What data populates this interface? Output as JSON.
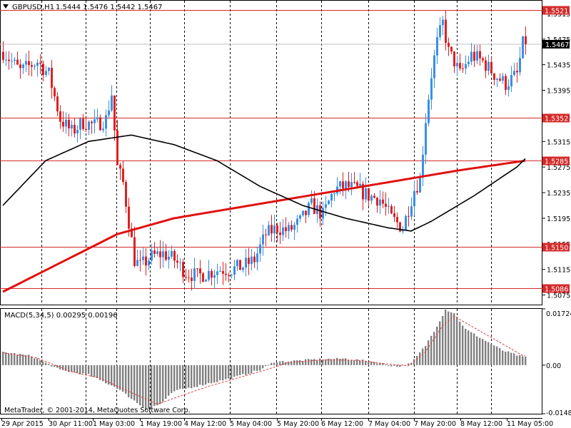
{
  "header": {
    "dropdown_icon": "triangle-down-icon",
    "symbol": "GBPUSD,H1",
    "ohlc": "1.5444 1.5476 1.5442 1.5467"
  },
  "colors": {
    "bull": "#3a8ee6",
    "bear": "#e02020",
    "level_line": "#d42a2a",
    "ma_fast": "#000000",
    "ma_slow": "#e01010",
    "macd_hist": "#808080",
    "macd_signal": "#e04040",
    "grid": "#000000",
    "background": "#ffffff"
  },
  "main_chart": {
    "y_min": 1.506,
    "y_max": 1.5535,
    "y_ticks": [
      "1.5515",
      "1.5475",
      "1.5435",
      "1.5395",
      "1.5355",
      "1.5315",
      "1.5275",
      "1.5235",
      "1.5195",
      "1.5155",
      "1.5115",
      "1.5075"
    ],
    "current_price": "1.5467",
    "levels": [
      {
        "label": "1.5521",
        "value": 1.5521
      },
      {
        "label": "1.5352",
        "value": 1.5352
      },
      {
        "label": "1.5285",
        "value": 1.5285
      },
      {
        "label": "1.5150",
        "value": 1.515
      },
      {
        "label": "1.5086",
        "value": 1.5086
      }
    ]
  },
  "macd": {
    "title": "MACD(5,34,5) 0.00295 0.00196",
    "y_min": -0.01489,
    "y_max": 0.01724,
    "ticks": [
      "0.01724",
      "0.00",
      "-0.01489"
    ]
  },
  "x_axis": {
    "labels": [
      "29 Apr 2015",
      "30 Apr 11:00",
      "1 May 03:00",
      "1 May 19:00",
      "4 May 12:00",
      "5 May 04:00",
      "5 May 20:00",
      "6 May 12:00",
      "7 May 04:00",
      "7 May 20:00",
      "8 May 12:00",
      "11 May 05:00"
    ]
  },
  "footer": {
    "copyright": "MetaTrader, © 2001-2014, MetaQuotes Software Corp."
  },
  "chart_data": {
    "type": "candlestick",
    "symbol": "GBPUSD",
    "timeframe": "H1",
    "price_anchors_x_by_bar": [
      [
        0,
        1.5455
      ],
      [
        6,
        1.5425
      ],
      [
        12,
        1.544
      ],
      [
        16,
        1.542
      ],
      [
        20,
        1.535
      ],
      [
        24,
        1.533
      ],
      [
        28,
        1.5345
      ],
      [
        32,
        1.534
      ],
      [
        36,
        1.535
      ],
      [
        38,
        1.539
      ],
      [
        40,
        1.5275
      ],
      [
        42,
        1.525
      ],
      [
        44,
        1.519
      ],
      [
        46,
        1.513
      ],
      [
        48,
        1.512
      ],
      [
        52,
        1.5135
      ],
      [
        56,
        1.514
      ],
      [
        60,
        1.513
      ],
      [
        64,
        1.511
      ],
      [
        68,
        1.5105
      ],
      [
        72,
        1.511
      ],
      [
        76,
        1.5115
      ],
      [
        80,
        1.5115
      ],
      [
        84,
        1.512
      ],
      [
        88,
        1.513
      ],
      [
        92,
        1.517
      ],
      [
        96,
        1.518
      ],
      [
        100,
        1.5175
      ],
      [
        104,
        1.519
      ],
      [
        108,
        1.5215
      ],
      [
        112,
        1.52
      ],
      [
        116,
        1.524
      ],
      [
        120,
        1.5245
      ],
      [
        124,
        1.524
      ],
      [
        128,
        1.523
      ],
      [
        132,
        1.5225
      ],
      [
        136,
        1.5195
      ],
      [
        140,
        1.518
      ],
      [
        144,
        1.524
      ],
      [
        146,
        1.5255
      ],
      [
        148,
        1.535
      ],
      [
        150,
        1.542
      ],
      [
        152,
        1.547
      ],
      [
        154,
        1.55
      ],
      [
        156,
        1.5455
      ],
      [
        158,
        1.544
      ],
      [
        160,
        1.542
      ],
      [
        164,
        1.545
      ],
      [
        168,
        1.544
      ],
      [
        172,
        1.542
      ],
      [
        176,
        1.5405
      ],
      [
        180,
        1.542
      ],
      [
        182,
        1.5467
      ]
    ],
    "ma_fast_anchors_x_by_bar": [
      [
        0,
        1.5215
      ],
      [
        15,
        1.5285
      ],
      [
        30,
        1.5315
      ],
      [
        45,
        1.5325
      ],
      [
        60,
        1.531
      ],
      [
        75,
        1.5285
      ],
      [
        90,
        1.5245
      ],
      [
        105,
        1.5215
      ],
      [
        120,
        1.5195
      ],
      [
        135,
        1.518
      ],
      [
        143,
        1.5175
      ],
      [
        150,
        1.519
      ],
      [
        165,
        1.523
      ],
      [
        180,
        1.5275
      ],
      [
        183,
        1.5288
      ]
    ],
    "ma_slow_anchors_x_by_bar": [
      [
        0,
        1.508
      ],
      [
        20,
        1.5125
      ],
      [
        40,
        1.517
      ],
      [
        60,
        1.5195
      ],
      [
        80,
        1.521
      ],
      [
        100,
        1.5225
      ],
      [
        120,
        1.524
      ],
      [
        140,
        1.5255
      ],
      [
        160,
        1.527
      ],
      [
        183,
        1.5285
      ]
    ],
    "macd_hist_anchors_x_by_bar": [
      [
        0,
        0.004
      ],
      [
        10,
        0.0028
      ],
      [
        20,
        -0.0015
      ],
      [
        30,
        -0.003
      ],
      [
        40,
        -0.007
      ],
      [
        50,
        -0.0135
      ],
      [
        55,
        -0.012
      ],
      [
        60,
        -0.008
      ],
      [
        70,
        -0.006
      ],
      [
        80,
        -0.004
      ],
      [
        90,
        -0.0015
      ],
      [
        95,
        0.001
      ],
      [
        100,
        0.0012
      ],
      [
        110,
        0.0018
      ],
      [
        120,
        0.002
      ],
      [
        130,
        0.001
      ],
      [
        138,
        -0.0005
      ],
      [
        143,
        0.0005
      ],
      [
        148,
        0.006
      ],
      [
        152,
        0.012
      ],
      [
        155,
        0.017
      ],
      [
        158,
        0.016
      ],
      [
        162,
        0.011
      ],
      [
        168,
        0.008
      ],
      [
        175,
        0.0045
      ],
      [
        182,
        0.0025
      ]
    ],
    "macd_signal_anchors_x_by_bar": [
      [
        0,
        0.0038
      ],
      [
        12,
        0.0022
      ],
      [
        24,
        -0.002
      ],
      [
        34,
        -0.004
      ],
      [
        44,
        -0.008
      ],
      [
        54,
        -0.012
      ],
      [
        62,
        -0.0095
      ],
      [
        72,
        -0.0065
      ],
      [
        82,
        -0.004
      ],
      [
        92,
        -0.0015
      ],
      [
        100,
        0.0008
      ],
      [
        112,
        0.0016
      ],
      [
        124,
        0.0015
      ],
      [
        134,
        0.0004
      ],
      [
        142,
        -0.0002
      ],
      [
        148,
        0.004
      ],
      [
        154,
        0.012
      ],
      [
        158,
        0.015
      ],
      [
        164,
        0.012
      ],
      [
        172,
        0.008
      ],
      [
        182,
        0.003
      ]
    ]
  }
}
